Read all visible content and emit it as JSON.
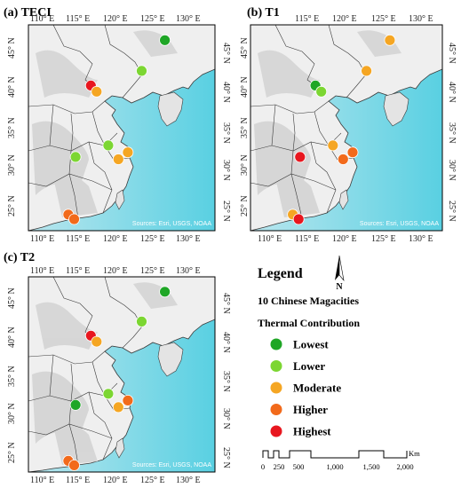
{
  "panels": [
    {
      "label": "(a) TECI",
      "x_ticks": [
        "110° E",
        "115° E",
        "120° E",
        "125° E",
        "130° E"
      ],
      "y_ticks": [
        "45° N",
        "40° N",
        "35° N",
        "30° N",
        "25° N"
      ],
      "credit": "Sources: Esri, USGS, NOAA",
      "cities": [
        {
          "lon": 126.6,
          "lat": 45.8,
          "class": "Lowest"
        },
        {
          "lon": 123.4,
          "lat": 41.8,
          "class": "Lower"
        },
        {
          "lon": 116.4,
          "lat": 39.9,
          "class": "Highest"
        },
        {
          "lon": 117.2,
          "lat": 39.1,
          "class": "Moderate"
        },
        {
          "lon": 118.8,
          "lat": 32.1,
          "class": "Lower"
        },
        {
          "lon": 120.2,
          "lat": 30.3,
          "class": "Moderate"
        },
        {
          "lon": 121.5,
          "lat": 31.2,
          "class": "Moderate"
        },
        {
          "lon": 114.3,
          "lat": 30.6,
          "class": "Lower"
        },
        {
          "lon": 113.3,
          "lat": 23.1,
          "class": "Higher"
        },
        {
          "lon": 114.1,
          "lat": 22.5,
          "class": "Higher"
        }
      ]
    },
    {
      "label": "(b) T1",
      "x_ticks": [
        "110° E",
        "115° E",
        "120° E",
        "125° E",
        "130° E"
      ],
      "y_ticks": [
        "45° N",
        "40° N",
        "35° N",
        "30° N",
        "25° N"
      ],
      "credit": "Sources: Esri, USGS, NOAA",
      "cities": [
        {
          "lon": 126.6,
          "lat": 45.8,
          "class": "Moderate"
        },
        {
          "lon": 123.4,
          "lat": 41.8,
          "class": "Moderate"
        },
        {
          "lon": 116.4,
          "lat": 39.9,
          "class": "Lowest"
        },
        {
          "lon": 117.2,
          "lat": 39.1,
          "class": "Lower"
        },
        {
          "lon": 118.8,
          "lat": 32.1,
          "class": "Moderate"
        },
        {
          "lon": 120.2,
          "lat": 30.3,
          "class": "Higher"
        },
        {
          "lon": 121.5,
          "lat": 31.2,
          "class": "Higher"
        },
        {
          "lon": 114.3,
          "lat": 30.6,
          "class": "Highest"
        },
        {
          "lon": 113.3,
          "lat": 23.1,
          "class": "Moderate"
        },
        {
          "lon": 114.1,
          "lat": 22.5,
          "class": "Highest"
        }
      ]
    },
    {
      "label": "(c) T2",
      "x_ticks": [
        "110° E",
        "115° E",
        "120° E",
        "125° E",
        "130° E"
      ],
      "y_ticks": [
        "45° N",
        "40° N",
        "35° N",
        "30° N",
        "25° N"
      ],
      "credit": "Sources: Esri, USGS, NOAA",
      "cities": [
        {
          "lon": 126.6,
          "lat": 45.8,
          "class": "Lowest"
        },
        {
          "lon": 123.4,
          "lat": 41.8,
          "class": "Lower"
        },
        {
          "lon": 116.4,
          "lat": 39.9,
          "class": "Highest"
        },
        {
          "lon": 117.2,
          "lat": 39.1,
          "class": "Moderate"
        },
        {
          "lon": 118.8,
          "lat": 32.1,
          "class": "Lower"
        },
        {
          "lon": 120.2,
          "lat": 30.3,
          "class": "Moderate"
        },
        {
          "lon": 121.5,
          "lat": 31.2,
          "class": "Higher"
        },
        {
          "lon": 114.3,
          "lat": 30.6,
          "class": "Lowest"
        },
        {
          "lon": 113.3,
          "lat": 23.1,
          "class": "Higher"
        },
        {
          "lon": 114.1,
          "lat": 22.5,
          "class": "Higher"
        }
      ]
    }
  ],
  "legend": {
    "title": "Legend",
    "subtitle1": "10 Chinese Magacities",
    "subtitle2": "Thermal Contribution",
    "items": [
      {
        "label": "Lowest",
        "color": "#1fa626"
      },
      {
        "label": "Lower",
        "color": "#7cd632"
      },
      {
        "label": "Moderate",
        "color": "#f5a623"
      },
      {
        "label": "Higher",
        "color": "#f26a1b"
      },
      {
        "label": "Highest",
        "color": "#e8171f"
      }
    ]
  },
  "north_arrow": {
    "label": "N"
  },
  "scale_bar": {
    "unit": "Km",
    "ticks": [
      "0",
      "250",
      "500",
      "1,000",
      "1,500",
      "2,000"
    ]
  },
  "colors": {
    "sea": "#aee3ec",
    "land": "#efefef",
    "terrain": "#d4d4d4",
    "border": "#3a3a3a"
  }
}
